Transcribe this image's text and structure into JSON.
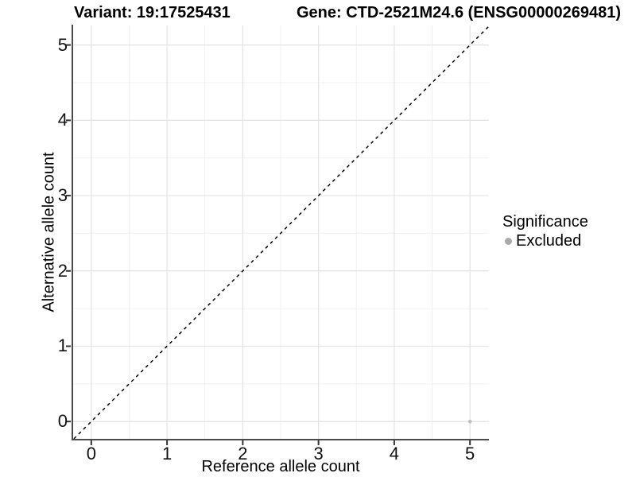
{
  "chart_data": {
    "type": "scatter",
    "title_left": "Variant: 19:17525431",
    "title_right": "Gene: CTD-2521M24.6 (ENSG00000269481)",
    "xlabel": "Reference allele count",
    "ylabel": "Alternative allele count",
    "x_ticks": [
      0,
      1,
      2,
      3,
      4,
      5
    ],
    "y_ticks": [
      0,
      1,
      2,
      3,
      4,
      5
    ],
    "xlim": [
      -0.25,
      5.25
    ],
    "ylim": [
      -0.23,
      5.26
    ],
    "grid": "major+minor",
    "legend_position": "right",
    "identity_line": {
      "slope": 1,
      "intercept": 0,
      "style": "dashed",
      "color": "#000000"
    },
    "points": [
      {
        "x": 5,
        "y": 0,
        "series": "Excluded",
        "color": "#c1c1c1",
        "radius": 2.4
      }
    ],
    "legend": {
      "title": "Significance",
      "items": [
        {
          "label": "Excluded",
          "color": "#a9a9a9"
        }
      ]
    },
    "colors": {
      "grid_major": "#e3e3e3",
      "grid_minor": "#f0f0f0",
      "axis_line": "#4a4a4a",
      "tick_mark": "#333333",
      "panel_background": "#ffffff"
    }
  }
}
